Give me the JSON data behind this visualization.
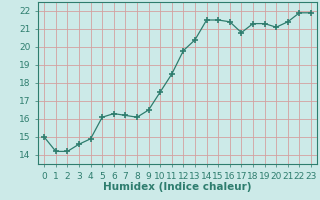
{
  "x": [
    0,
    1,
    2,
    3,
    4,
    5,
    6,
    7,
    8,
    9,
    10,
    11,
    12,
    13,
    14,
    15,
    16,
    17,
    18,
    19,
    20,
    21,
    22,
    23
  ],
  "y": [
    15.0,
    14.2,
    14.2,
    14.6,
    14.9,
    16.1,
    16.3,
    16.2,
    16.1,
    16.5,
    17.5,
    18.5,
    19.8,
    20.4,
    21.5,
    21.5,
    21.4,
    20.8,
    21.3,
    21.3,
    21.1,
    21.4,
    21.9,
    21.9
  ],
  "line_color": "#2e7d6e",
  "marker": "+",
  "marker_size": 4,
  "background_color": "#cceae8",
  "grid_color": "#d4a0a0",
  "title": "",
  "xlabel": "Humidex (Indice chaleur)",
  "ylabel": "",
  "xlim": [
    -0.5,
    23.5
  ],
  "ylim": [
    13.5,
    22.5
  ],
  "yticks": [
    14,
    15,
    16,
    17,
    18,
    19,
    20,
    21,
    22
  ],
  "xticks": [
    0,
    1,
    2,
    3,
    4,
    5,
    6,
    7,
    8,
    9,
    10,
    11,
    12,
    13,
    14,
    15,
    16,
    17,
    18,
    19,
    20,
    21,
    22,
    23
  ],
  "tick_fontsize": 6.5,
  "xlabel_fontsize": 7.5,
  "xlabel_fontweight": "bold",
  "spine_color": "#2e7d6e",
  "tick_color": "#2e7d6e"
}
